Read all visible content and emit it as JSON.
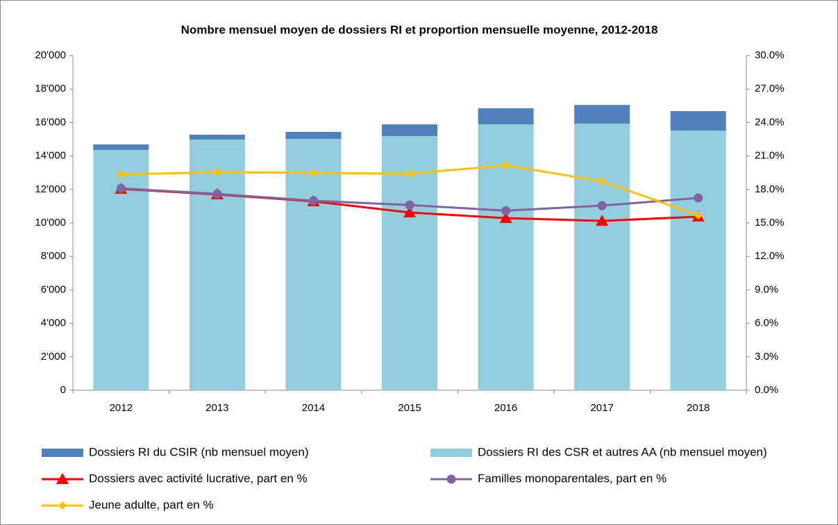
{
  "chart_data": {
    "type": "combo",
    "title": "Nombre mensuel moyen de dossiers RI et proportion mensuelle moyenne, 2012-2018",
    "categories": [
      "2012",
      "2013",
      "2014",
      "2015",
      "2016",
      "2017",
      "2018"
    ],
    "series": [
      {
        "name": "Dossiers RI du CSIR (nb mensuel moyen)",
        "type": "bar",
        "color": "#4f81bd",
        "values": [
          330,
          290,
          420,
          700,
          960,
          1120,
          1160
        ]
      },
      {
        "name": "Dossiers RI des CSR et autres AA (nb mensuel moyen)",
        "type": "bar",
        "color": "#92cddc",
        "values": [
          14360,
          14980,
          15020,
          15190,
          15890,
          15930,
          15520
        ]
      },
      {
        "name": "Dossiers avec activité lucrative, part en %",
        "type": "line",
        "axis": "y2",
        "marker": "triangle",
        "color": "#ff0000",
        "values": [
          18.05,
          17.55,
          16.93,
          15.93,
          15.43,
          15.18,
          15.56
        ]
      },
      {
        "name": "Familles monoparentales, part en %",
        "type": "line",
        "axis": "y2",
        "marker": "circle",
        "color": "#8064a2",
        "values": [
          18.1,
          17.6,
          16.99,
          16.6,
          16.1,
          16.55,
          17.24
        ]
      },
      {
        "name": "Jeune adulte, part en %",
        "type": "line",
        "axis": "y2",
        "marker": "diamond",
        "color": "#ffc000",
        "values": [
          19.35,
          19.54,
          19.48,
          19.41,
          20.16,
          18.73,
          15.68
        ]
      }
    ],
    "ylim": [
      0,
      20000
    ],
    "yticks": [
      0,
      {
        "value": 2000,
        "label": "2'000"
      },
      {
        "value": 4000,
        "label": "4'000"
      },
      {
        "value": 6000,
        "label": "6'000"
      },
      {
        "value": 8000,
        "label": "8'000"
      },
      {
        "value": 10000,
        "label": "10'000"
      },
      {
        "value": 12000,
        "label": "12'000"
      },
      {
        "value": 14000,
        "label": "14'000"
      },
      {
        "value": 16000,
        "label": "16'000"
      },
      {
        "value": 18000,
        "label": "18'000"
      },
      {
        "value": 20000,
        "label": "20'000"
      }
    ],
    "y2lim": [
      0,
      30
    ],
    "y2ticks": [
      {
        "value": 0,
        "label": "0.0%"
      },
      {
        "value": 3,
        "label": "3.0%"
      },
      {
        "value": 6,
        "label": "6.0%"
      },
      {
        "value": 9,
        "label": "9.0%"
      },
      {
        "value": 12,
        "label": "12.0%"
      },
      {
        "value": 15,
        "label": "15.0%"
      },
      {
        "value": 18,
        "label": "18.0%"
      },
      {
        "value": 21,
        "label": "21.0%"
      },
      {
        "value": 24,
        "label": "24.0%"
      },
      {
        "value": 27,
        "label": "27.0%"
      },
      {
        "value": 30,
        "label": "30.0%"
      }
    ],
    "grid": false,
    "legend": "bottom"
  }
}
